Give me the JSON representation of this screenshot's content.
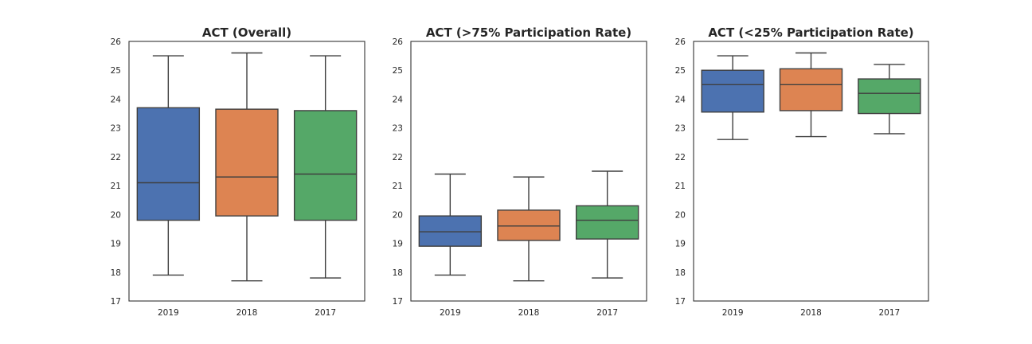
{
  "chart_data": [
    {
      "type": "box",
      "title": "ACT (Overall)",
      "categories": [
        "2019",
        "2018",
        "2017"
      ],
      "ylim": [
        17,
        26
      ],
      "yticks": [
        "17",
        "18",
        "19",
        "20",
        "21",
        "22",
        "23",
        "24",
        "25",
        "26"
      ],
      "grid": false,
      "series": [
        {
          "category": "2019",
          "whisker_low": 17.9,
          "q1": 19.8,
          "median": 21.1,
          "q3": 23.7,
          "whisker_high": 25.5,
          "color": "#4c72b0"
        },
        {
          "category": "2018",
          "whisker_low": 17.7,
          "q1": 19.95,
          "median": 21.3,
          "q3": 23.65,
          "whisker_high": 25.6,
          "color": "#dd8452"
        },
        {
          "category": "2017",
          "whisker_low": 17.8,
          "q1": 19.8,
          "median": 21.4,
          "q3": 23.6,
          "whisker_high": 25.5,
          "color": "#55a868"
        }
      ]
    },
    {
      "type": "box",
      "title": "ACT (>75% Participation Rate)",
      "categories": [
        "2019",
        "2018",
        "2017"
      ],
      "ylim": [
        17,
        26
      ],
      "yticks": [
        "17",
        "18",
        "19",
        "20",
        "21",
        "22",
        "23",
        "24",
        "25",
        "26"
      ],
      "grid": false,
      "series": [
        {
          "category": "2019",
          "whisker_low": 17.9,
          "q1": 18.9,
          "median": 19.4,
          "q3": 19.95,
          "whisker_high": 21.4,
          "color": "#4c72b0"
        },
        {
          "category": "2018",
          "whisker_low": 17.7,
          "q1": 19.1,
          "median": 19.6,
          "q3": 20.15,
          "whisker_high": 21.3,
          "color": "#dd8452"
        },
        {
          "category": "2017",
          "whisker_low": 17.8,
          "q1": 19.15,
          "median": 19.8,
          "q3": 20.3,
          "whisker_high": 21.5,
          "color": "#55a868"
        }
      ]
    },
    {
      "type": "box",
      "title": "ACT (<25% Participation Rate)",
      "categories": [
        "2019",
        "2018",
        "2017"
      ],
      "ylim": [
        17,
        26
      ],
      "yticks": [
        "17",
        "18",
        "19",
        "20",
        "21",
        "22",
        "23",
        "24",
        "25",
        "26"
      ],
      "grid": false,
      "series": [
        {
          "category": "2019",
          "whisker_low": 22.6,
          "q1": 23.55,
          "median": 24.5,
          "q3": 25.0,
          "whisker_high": 25.5,
          "color": "#4c72b0"
        },
        {
          "category": "2018",
          "whisker_low": 22.7,
          "q1": 23.6,
          "median": 24.5,
          "q3": 25.05,
          "whisker_high": 25.6,
          "color": "#dd8452"
        },
        {
          "category": "2017",
          "whisker_low": 22.8,
          "q1": 23.5,
          "median": 24.2,
          "q3": 24.7,
          "whisker_high": 25.2,
          "color": "#55a868"
        }
      ]
    }
  ]
}
